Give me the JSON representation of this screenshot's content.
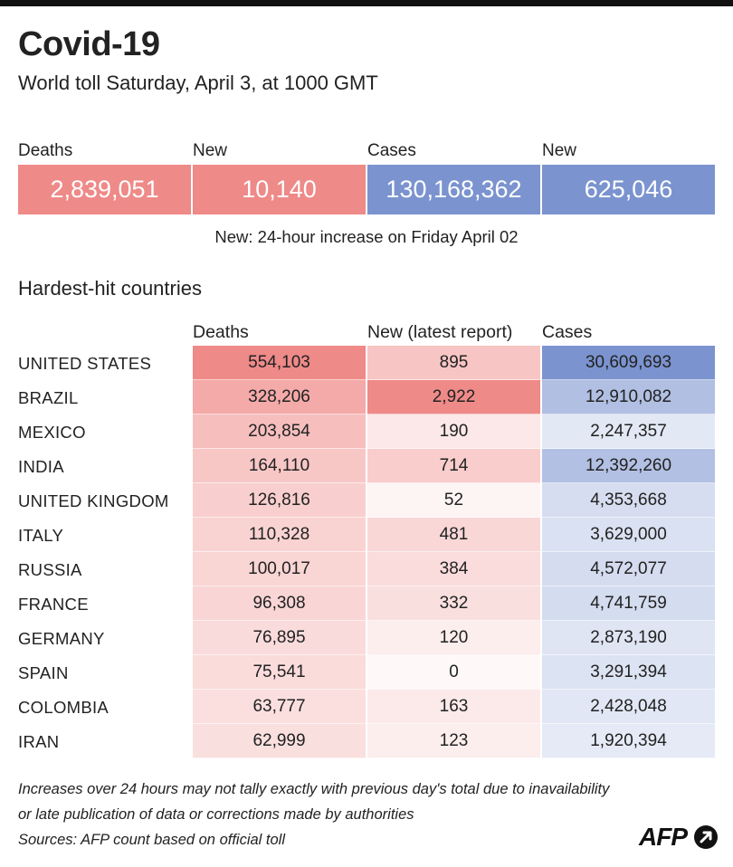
{
  "header": {
    "title": "Covid-19",
    "subtitle": "World toll Saturday, April 3, at 1000 GMT"
  },
  "summary": {
    "items": [
      {
        "label": "Deaths",
        "value": "2,839,051",
        "color": "#ee8a88"
      },
      {
        "label": "New",
        "value": "10,140",
        "color": "#ee8a88"
      },
      {
        "label": "Cases",
        "value": "130,168,362",
        "color": "#7b93cf"
      },
      {
        "label": "New",
        "value": "625,046",
        "color": "#7b93cf"
      }
    ],
    "note": "New: 24-hour increase on Friday April 02"
  },
  "chart_data": {
    "type": "table",
    "title": "Hardest-hit countries",
    "columns": [
      "Deaths",
      "New (latest report)",
      "Cases"
    ],
    "rows": [
      {
        "country": "UNITED STATES",
        "deaths": 554103,
        "new": 895,
        "cases": 30609693
      },
      {
        "country": "BRAZIL",
        "deaths": 328206,
        "new": 2922,
        "cases": 12910082
      },
      {
        "country": "MEXICO",
        "deaths": 203854,
        "new": 190,
        "cases": 2247357
      },
      {
        "country": "INDIA",
        "deaths": 164110,
        "new": 714,
        "cases": 12392260
      },
      {
        "country": "UNITED KINGDOM",
        "deaths": 126816,
        "new": 52,
        "cases": 4353668
      },
      {
        "country": "ITALY",
        "deaths": 110328,
        "new": 481,
        "cases": 3629000
      },
      {
        "country": "RUSSIA",
        "deaths": 100017,
        "new": 384,
        "cases": 4572077
      },
      {
        "country": "FRANCE",
        "deaths": 96308,
        "new": 332,
        "cases": 4741759
      },
      {
        "country": "GERMANY",
        "deaths": 76895,
        "new": 120,
        "cases": 2873190
      },
      {
        "country": "SPAIN",
        "deaths": 75541,
        "new": 0,
        "cases": 3291394
      },
      {
        "country": "COLOMBIA",
        "deaths": 63777,
        "new": 163,
        "cases": 2428048
      },
      {
        "country": "IRAN",
        "deaths": 62999,
        "new": 123,
        "cases": 1920394
      }
    ],
    "colors": {
      "red": "#ee8a88",
      "blue": "#7b93cf"
    }
  },
  "footnotes": [
    "Increases over 24 hours may not tally exactly with previous day's total due to inavailability",
    "or late publication of data or corrections made by authorities",
    "Sources: AFP count based on official toll"
  ],
  "logo": {
    "text": "AFP"
  }
}
